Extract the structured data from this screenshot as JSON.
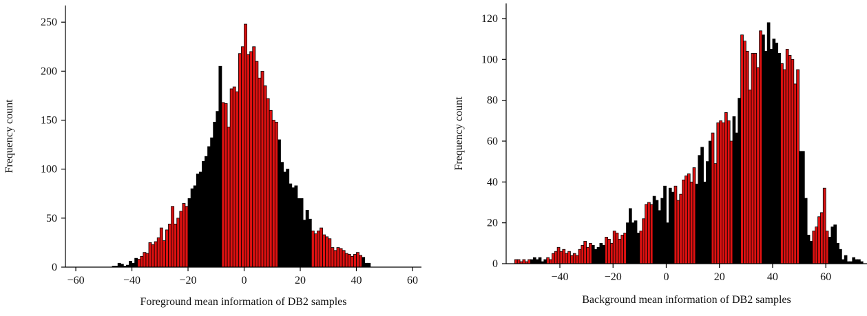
{
  "chart_data": [
    {
      "type": "histogram",
      "xlabel": "Foreground mean information of DB2 samples",
      "ylabel": "Frequency count",
      "bins": [
        -47,
        -46,
        -45,
        -44,
        -43,
        -42,
        -41,
        -40,
        -39,
        -38,
        -37,
        -36,
        -35,
        -34,
        -33,
        -32,
        -31,
        -30,
        -29,
        -28,
        -27,
        -26,
        -25,
        -24,
        -23,
        -22,
        -21,
        -20,
        -19,
        -18,
        -17,
        -16,
        -15,
        -14,
        -13,
        -12,
        -11,
        -10,
        -9,
        -8,
        -7,
        -6,
        -5,
        -4,
        -3,
        -2,
        -1,
        0,
        1,
        2,
        3,
        4,
        5,
        6,
        7,
        8,
        9,
        10,
        11,
        12,
        13,
        14,
        15,
        16,
        17,
        18,
        19,
        20,
        21,
        22,
        23,
        24,
        25,
        26,
        27,
        28,
        29,
        30,
        31,
        32,
        33,
        34,
        35,
        36,
        37,
        38,
        39,
        40,
        41,
        42,
        43,
        44,
        45
      ],
      "values": [
        1,
        1,
        4,
        3,
        1,
        2,
        6,
        4,
        9,
        8,
        11,
        15,
        14,
        25,
        23,
        26,
        30,
        40,
        27,
        38,
        44,
        62,
        44,
        50,
        57,
        65,
        62,
        70,
        80,
        83,
        95,
        97,
        108,
        113,
        123,
        132,
        148,
        159,
        205,
        168,
        167,
        143,
        182,
        184,
        179,
        218,
        225,
        248,
        217,
        220,
        225,
        210,
        193,
        200,
        185,
        172,
        160,
        150,
        148,
        130,
        107,
        97,
        100,
        85,
        81,
        83,
        70,
        70,
        48,
        58,
        49,
        37,
        34,
        37,
        40,
        33,
        31,
        29,
        20,
        17,
        20,
        19,
        17,
        14,
        13,
        11,
        13,
        15,
        12,
        10,
        4,
        4
      ],
      "colors": [
        "#000",
        "#000",
        "#000",
        "#000",
        "#000",
        "#000",
        "#000",
        "#000",
        "#000",
        "#d11",
        "#d11",
        "#d11",
        "#d11",
        "#d11",
        "#d11",
        "#d11",
        "#d11",
        "#d11",
        "#d11",
        "#d11",
        "#d11",
        "#d11",
        "#d11",
        "#d11",
        "#d11",
        "#d11",
        "#d11",
        "#000",
        "#000",
        "#000",
        "#000",
        "#000",
        "#000",
        "#000",
        "#000",
        "#000",
        "#000",
        "#000",
        "#000",
        "#d11",
        "#d11",
        "#d11",
        "#d11",
        "#d11",
        "#d11",
        "#d11",
        "#d11",
        "#d11",
        "#d11",
        "#d11",
        "#d11",
        "#d11",
        "#d11",
        "#d11",
        "#d11",
        "#d11",
        "#d11",
        "#d11",
        "#d11",
        "#000",
        "#000",
        "#000",
        "#000",
        "#000",
        "#000",
        "#000",
        "#000",
        "#000",
        "#000",
        "#000",
        "#000",
        "#d11",
        "#d11",
        "#d11",
        "#d11",
        "#d11",
        "#d11",
        "#d11",
        "#d11",
        "#d11",
        "#d11",
        "#d11",
        "#d11",
        "#d11",
        "#d11",
        "#d11",
        "#d11",
        "#d11",
        "#d11",
        "#000",
        "#000",
        "#000"
      ],
      "xlim": [
        -63.7,
        63.2
      ],
      "xticks": [
        {
          "value": -60,
          "label": "−60"
        },
        {
          "value": -40,
          "label": "−40"
        },
        {
          "value": -20,
          "label": "−20"
        },
        0,
        20,
        40,
        60
      ],
      "ylim": [
        0,
        267
      ],
      "yticks": [
        0,
        50,
        100,
        150,
        200,
        250
      ]
    },
    {
      "type": "histogram",
      "xlabel": "Background mean information of DB2 samples",
      "ylabel": "Frequency count",
      "bins": [
        -57,
        -56,
        -55,
        -54,
        -53,
        -52,
        -51,
        -50,
        -49,
        -48,
        -47,
        -46,
        -45,
        -44,
        -43,
        -42,
        -41,
        -40,
        -39,
        -38,
        -37,
        -36,
        -35,
        -34,
        -33,
        -32,
        -31,
        -30,
        -29,
        -28,
        -27,
        -26,
        -25,
        -24,
        -23,
        -22,
        -21,
        -20,
        -19,
        -18,
        -17,
        -16,
        -15,
        -14,
        -13,
        -12,
        -11,
        -10,
        -9,
        -8,
        -7,
        -6,
        -5,
        -4,
        -3,
        -2,
        -1,
        0,
        1,
        2,
        3,
        4,
        5,
        6,
        7,
        8,
        9,
        10,
        11,
        12,
        13,
        14,
        15,
        16,
        17,
        18,
        19,
        20,
        21,
        22,
        23,
        24,
        25,
        26,
        27,
        28,
        29,
        30,
        31,
        32,
        33,
        34,
        35,
        36,
        37,
        38,
        39,
        40,
        41,
        42,
        43,
        44,
        45,
        46,
        47,
        48,
        49,
        50,
        51,
        52,
        53,
        54,
        55,
        56,
        57,
        58,
        59,
        60,
        61,
        62,
        63,
        64,
        65,
        66,
        67,
        68,
        69,
        70,
        71,
        72,
        73,
        74
      ],
      "values": [
        2,
        2,
        1,
        2,
        1,
        2,
        2,
        3,
        2,
        3,
        1,
        2,
        3,
        2,
        5,
        6,
        8,
        6,
        7,
        5,
        6,
        4,
        5,
        4,
        7,
        9,
        11,
        8,
        10,
        9,
        7,
        8,
        10,
        9,
        13,
        12,
        10,
        16,
        15,
        12,
        14,
        15,
        20,
        27,
        20,
        21,
        15,
        16,
        22,
        29,
        30,
        29,
        33,
        31,
        26,
        32,
        38,
        20,
        37,
        35,
        38,
        31,
        34,
        41,
        43,
        44,
        40,
        47,
        39,
        53,
        57,
        40,
        50,
        60,
        64,
        49,
        69,
        70,
        69,
        74,
        70,
        60,
        72,
        64,
        81,
        112,
        109,
        104,
        85,
        103,
        103,
        96,
        114,
        112,
        104,
        118,
        105,
        110,
        108,
        103,
        98,
        95,
        105,
        102,
        100,
        88,
        95,
        55,
        55,
        32,
        14,
        11,
        16,
        18,
        23,
        25,
        37,
        16,
        13,
        18,
        19,
        10,
        7,
        2,
        4,
        1,
        1,
        3,
        2,
        2,
        1
      ],
      "colors": [
        "#d11",
        "#d11",
        "#d11",
        "#d11",
        "#d11",
        "#d11",
        "#000",
        "#000",
        "#000",
        "#000",
        "#000",
        "#000",
        "#d11",
        "#d11",
        "#d11",
        "#d11",
        "#d11",
        "#d11",
        "#d11",
        "#d11",
        "#d11",
        "#d11",
        "#d11",
        "#d11",
        "#d11",
        "#d11",
        "#d11",
        "#d11",
        "#d11",
        "#000",
        "#000",
        "#000",
        "#000",
        "#000",
        "#d11",
        "#d11",
        "#d11",
        "#d11",
        "#d11",
        "#d11",
        "#d11",
        "#d11",
        "#000",
        "#000",
        "#000",
        "#000",
        "#000",
        "#d11",
        "#d11",
        "#d11",
        "#d11",
        "#d11",
        "#000",
        "#000",
        "#000",
        "#000",
        "#000",
        "#000",
        "#000",
        "#000",
        "#d11",
        "#d11",
        "#d11",
        "#d11",
        "#d11",
        "#d11",
        "#d11",
        "#d11",
        "#000",
        "#000",
        "#000",
        "#000",
        "#000",
        "#000",
        "#d11",
        "#d11",
        "#d11",
        "#d11",
        "#d11",
        "#d11",
        "#d11",
        "#d11",
        "#000",
        "#000",
        "#000",
        "#d11",
        "#d11",
        "#d11",
        "#d11",
        "#d11",
        "#d11",
        "#d11",
        "#d11",
        "#000",
        "#000",
        "#000",
        "#000",
        "#000",
        "#000",
        "#000",
        "#d11",
        "#d11",
        "#d11",
        "#d11",
        "#d11",
        "#d11",
        "#d11",
        "#000",
        "#000",
        "#000",
        "#000",
        "#000",
        "#d11",
        "#d11",
        "#d11",
        "#d11",
        "#d11",
        "#d11",
        "#000",
        "#000",
        "#000",
        "#000",
        "#000",
        "#000",
        "#000",
        "#000",
        "#000",
        "#000",
        "#000",
        "#000",
        "#000"
      ],
      "xlim": [
        -60.2,
        75.5
      ],
      "xticks": [
        {
          "value": -40,
          "label": "−40"
        },
        {
          "value": -20,
          "label": "−20"
        },
        0,
        20,
        40,
        60
      ],
      "ylim": [
        0,
        127.4
      ],
      "yticks": [
        0,
        20,
        40,
        60,
        80,
        100,
        120
      ]
    }
  ]
}
